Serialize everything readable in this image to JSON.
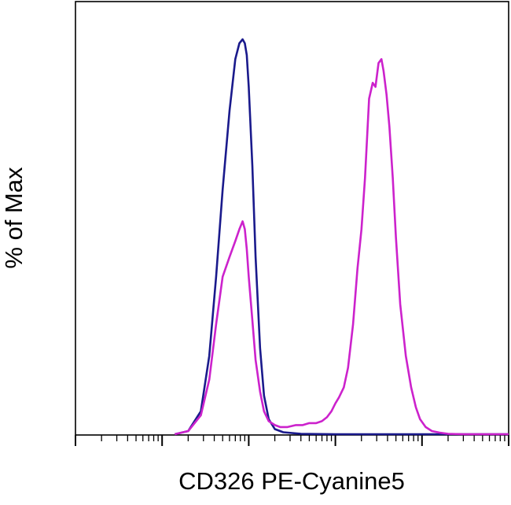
{
  "chart_data": {
    "type": "line",
    "title": "",
    "xlabel": "CD326 PE-Cyanine5",
    "ylabel": "% of Max",
    "x_scale": "log",
    "xlim": [
      1,
      100000
    ],
    "ylim": [
      0,
      100
    ],
    "grid": false,
    "legend": "none",
    "series": [
      {
        "color": "#1a1a8c",
        "x": [
          14,
          20,
          28,
          35,
          42,
          50,
          60,
          70,
          78,
          85,
          90,
          95,
          100,
          110,
          120,
          135,
          150,
          170,
          200,
          250,
          400,
          1000,
          3000,
          20000,
          100000
        ],
        "y": [
          0.2,
          1,
          6,
          20,
          40,
          62,
          82,
          95,
          99,
          100,
          99,
          96,
          88,
          68,
          45,
          22,
          10,
          4,
          1.5,
          0.7,
          0.3,
          0.2,
          0.2,
          0.2,
          0.2
        ]
      },
      {
        "color": "#cc22cc",
        "x": [
          14,
          20,
          28,
          35,
          42,
          50,
          60,
          70,
          78,
          85,
          90,
          95,
          100,
          110,
          120,
          135,
          150,
          170,
          200,
          230,
          280,
          350,
          420,
          500,
          600,
          700,
          800,
          900,
          1000,
          1100,
          1250,
          1400,
          1600,
          1800,
          2000,
          2200,
          2450,
          2700,
          2900,
          3150,
          3400,
          3600,
          3900,
          4200,
          4600,
          5000,
          5600,
          6500,
          7500,
          8500,
          9500,
          11000,
          13000,
          16000,
          20000,
          30000,
          100000
        ],
        "y": [
          0.2,
          1,
          5,
          14,
          28,
          40,
          45,
          49,
          52,
          54,
          52,
          47,
          40,
          29,
          19,
          11,
          6,
          3.5,
          2.5,
          2,
          2,
          2.5,
          2.5,
          3,
          3,
          3.5,
          4.5,
          6,
          8,
          9.5,
          12,
          17,
          28,
          42,
          52,
          65,
          85,
          89,
          88,
          94,
          95,
          92,
          86,
          78,
          65,
          50,
          33,
          20,
          12,
          7,
          4,
          2,
          1,
          0.6,
          0.3,
          0.2,
          0.2
        ]
      }
    ]
  }
}
